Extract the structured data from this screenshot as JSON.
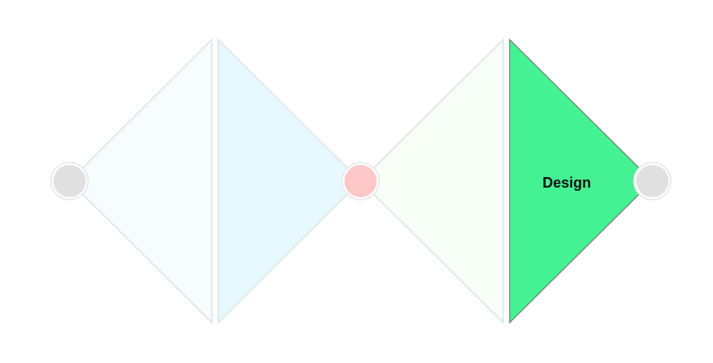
{
  "diagram": {
    "type": "double-diamond",
    "phases": [
      {
        "id": "phase-1",
        "label": "",
        "fill": "#F7FDFF",
        "stroke": "#E2E8EA",
        "active": false
      },
      {
        "id": "phase-2",
        "label": "",
        "fill": "#E8F8FF",
        "stroke": "#E2E8EA",
        "active": false
      },
      {
        "id": "phase-3",
        "label": "",
        "fill": "#F7FFF7",
        "stroke": "#E2E8EA",
        "active": false
      },
      {
        "id": "phase-4",
        "label": "Design",
        "fill": "#44F293",
        "stroke": "#777777",
        "active": true
      }
    ],
    "nodes": [
      {
        "id": "node-start",
        "fill": "#E0E0E0",
        "active": false
      },
      {
        "id": "node-middle",
        "fill": "#FFC8C8",
        "active": false
      },
      {
        "id": "node-end",
        "fill": "#E0E0E0",
        "active": false
      }
    ],
    "colors": {
      "node_ring": "#FFFFFF",
      "node_outline": "#E6E6E6",
      "label_text": "#111111"
    }
  }
}
